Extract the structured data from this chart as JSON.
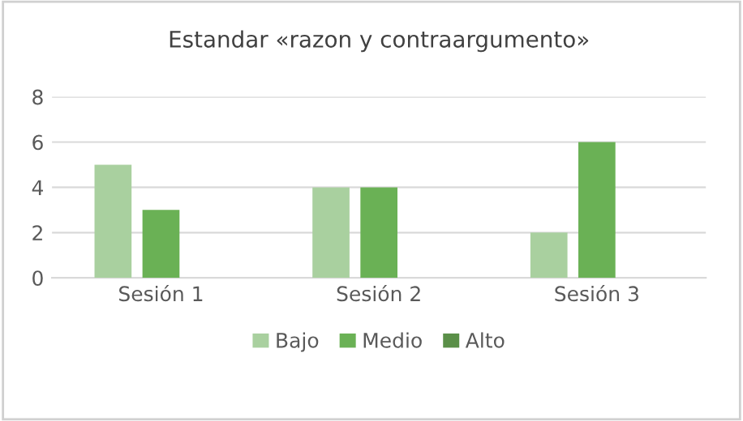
{
  "chart_data": {
    "type": "bar",
    "title": "Estandar «razon y contraargumento»",
    "categories": [
      "Sesión 1",
      "Sesión 2",
      "Sesión 3"
    ],
    "series": [
      {
        "name": "Bajo",
        "color": "#a9d09f",
        "values": [
          5,
          4,
          2
        ]
      },
      {
        "name": "Medio",
        "color": "#6ab155",
        "values": [
          3,
          4,
          6
        ]
      },
      {
        "name": "Alto",
        "color": "#5a8f48",
        "values": [
          null,
          null,
          null
        ]
      }
    ],
    "ylim": [
      0,
      8
    ],
    "yticks": [
      0,
      2,
      4,
      6,
      8
    ],
    "grid": "y",
    "legend": "bottom"
  }
}
